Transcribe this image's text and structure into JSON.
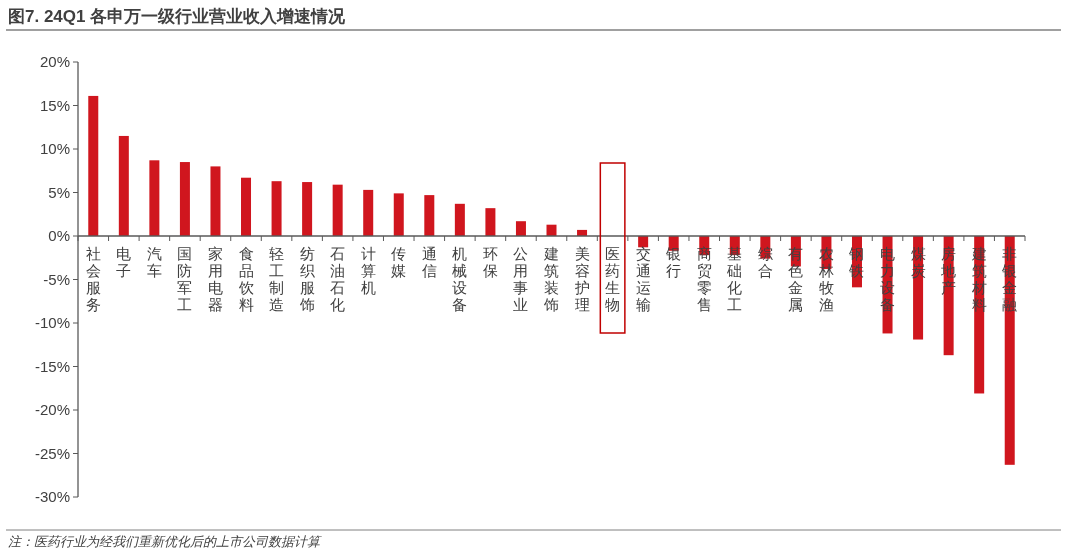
{
  "chart_data": {
    "type": "bar",
    "title": "图7. 24Q1 各申万一级行业营业收入增速情况",
    "categories": [
      "社会服务",
      "电子",
      "汽车",
      "国防军工",
      "家用电器",
      "食品饮料",
      "轻工制造",
      "纺织服饰",
      "石油石化",
      "计算机",
      "传媒",
      "通信",
      "机械设备",
      "环保",
      "公用事业",
      "建筑装饰",
      "美容护理",
      "医药生物",
      "交通运输",
      "银行",
      "商贸零售",
      "基础化工",
      "综合",
      "有色金属",
      "农林牧渔",
      "钢铁",
      "电力设备",
      "煤炭",
      "房地产",
      "建筑材料",
      "非银金融"
    ],
    "values": [
      16.1,
      11.5,
      8.7,
      8.5,
      8.0,
      6.7,
      6.3,
      6.2,
      5.9,
      5.3,
      4.9,
      4.7,
      3.7,
      3.2,
      1.7,
      1.3,
      0.7,
      null,
      -1.3,
      -1.7,
      -2.2,
      -2.2,
      -2.6,
      -3.5,
      -3.8,
      -5.9,
      -11.2,
      -11.9,
      -13.7,
      -18.1,
      -26.3
    ],
    "color": "#d0161e",
    "ylim": [
      -30,
      20
    ],
    "yticks": [
      {
        "value": 20,
        "label": "20%"
      },
      {
        "value": 15,
        "label": "15%"
      },
      {
        "value": 10,
        "label": "10%"
      },
      {
        "value": 5,
        "label": "5%"
      },
      {
        "value": 0,
        "label": "0%"
      },
      {
        "value": -5,
        "label": "-5%"
      },
      {
        "value": -10,
        "label": "-10%"
      },
      {
        "value": -15,
        "label": "-15%"
      },
      {
        "value": -20,
        "label": "-20%"
      },
      {
        "value": -25,
        "label": "-25%"
      },
      {
        "value": -30,
        "label": "-30%"
      }
    ],
    "annotations": [
      "注：医药行业为经我们重新优化后的上市公司数据计算"
    ]
  }
}
